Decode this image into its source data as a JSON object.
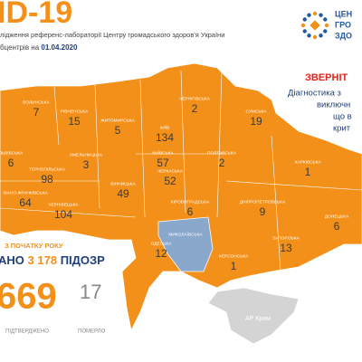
{
  "header": {
    "title": "ID-19",
    "subtitle_line1": "лідження референс-лабораторії Центру громадського здоров'я України",
    "subtitle_line2": "бцентрів на",
    "date": "01.04.2020"
  },
  "logo": {
    "lines": [
      "ЦЕН",
      "ГРО",
      "ЗДО"
    ]
  },
  "notice": {
    "title": "ЗВЕРНІТ",
    "lines": [
      "Діагностика з",
      "виключн",
      "що в",
      "крит"
    ]
  },
  "regions": [
    {
      "name": "ВОЛИНСЬКА",
      "cases": 7
    },
    {
      "name": "РІВНЕНСЬКА",
      "cases": 15
    },
    {
      "name": "ЖИТОМИРСЬКА",
      "cases": 5
    },
    {
      "name": "КИЇВ",
      "cases": 134
    },
    {
      "name": "КИЇВСЬКА",
      "cases": 57
    },
    {
      "name": "ЧЕРНІГІВСЬКА",
      "cases": 2
    },
    {
      "name": "СУМСЬКА",
      "cases": 19
    },
    {
      "name": "ЛЬВІВСЬКА",
      "cases": 6
    },
    {
      "name": "ТЕРНОПІЛЬСЬКА",
      "cases": 98
    },
    {
      "name": "ХМЕЛЬНИЦЬКА",
      "cases": 3
    },
    {
      "name": "ІВАНО-ФРАНКІВСЬКА",
      "cases": 64
    },
    {
      "name": "ЧЕРНІВЕЦЬКА",
      "cases": 104
    },
    {
      "name": "ВІННИЦЬКА",
      "cases": 49
    },
    {
      "name": "ЧЕРКАСЬКА",
      "cases": 52
    },
    {
      "name": "ПОЛТАВСЬКА",
      "cases": 2
    },
    {
      "name": "ХАРКІВСЬКА",
      "cases": 1
    },
    {
      "name": "КІРОВОГРАДСЬКА",
      "cases": 6
    },
    {
      "name": "ДНІПРОПЕТРОВСЬКА",
      "cases": 9
    },
    {
      "name": "ДОНЕЦЬКА",
      "cases": 6
    },
    {
      "name": "ОДЕСЬКА",
      "cases": 12
    },
    {
      "name": "ЗАПОРІЗЬКА",
      "cases": 13
    },
    {
      "name": "ХЕРСОНСЬКА",
      "cases": 1
    },
    {
      "name": "МИКОЛАЇВСЬКА",
      "cases": null
    }
  ],
  "crimea": "АР Крим",
  "summary": {
    "since": "З ПОЧАТКУ РОКУ",
    "tested_prefix": "АНО",
    "tested": "3 178",
    "tested_suffix": "ПІДОЗР",
    "confirmed": 669,
    "deaths": 17,
    "confirmed_label": "ПІДТВЕРДЖЕНО",
    "deaths_label": "ПОМЕРЛО"
  }
}
